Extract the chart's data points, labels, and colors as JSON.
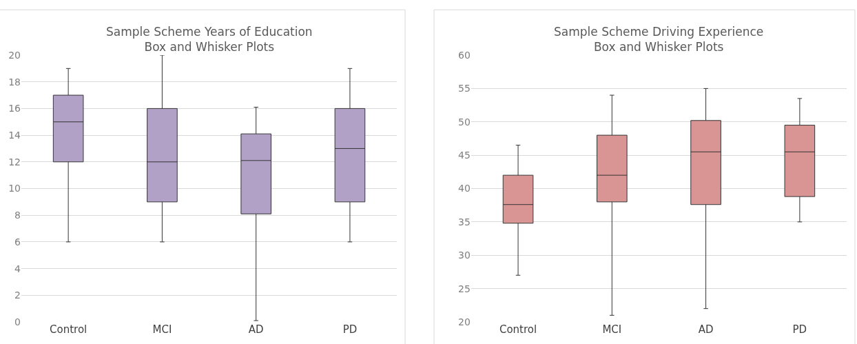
{
  "chart_data": [
    {
      "type": "box",
      "title": "Sample Scheme Years of Education\nBox and Whisker Plots",
      "categories": [
        "Control",
        "MCI",
        "AD",
        "PD"
      ],
      "series": [
        {
          "color": "#b1a1c7",
          "boxes": [
            {
              "low": 6,
              "q1": 12,
              "median": 15,
              "q3": 17,
              "high": 19
            },
            {
              "low": 6,
              "q1": 9,
              "median": 12,
              "q3": 16,
              "high": 20
            },
            {
              "low": 0.1,
              "q1": 8.1,
              "median": 12.1,
              "q3": 14.1,
              "high": 16.1
            },
            {
              "low": 6,
              "q1": 9,
              "median": 13,
              "q3": 16,
              "high": 19
            }
          ]
        }
      ],
      "ylim": [
        0,
        20
      ],
      "yticks": [
        0,
        2,
        4,
        6,
        8,
        10,
        12,
        14,
        16,
        18,
        20
      ],
      "grid": "y"
    },
    {
      "type": "box",
      "title": "Sample Scheme Driving Experience\nBox and Whisker Plots",
      "categories": [
        "Control",
        "MCI",
        "AD",
        "PD"
      ],
      "series": [
        {
          "color": "#d99594",
          "boxes": [
            {
              "low": 27,
              "q1": 34.8,
              "median": 37.6,
              "q3": 42,
              "high": 46.5
            },
            {
              "low": 21,
              "q1": 38,
              "median": 42,
              "q3": 48,
              "high": 54
            },
            {
              "low": 22,
              "q1": 37.6,
              "median": 45.5,
              "q3": 50.2,
              "high": 55
            },
            {
              "low": 35,
              "q1": 38.8,
              "median": 45.5,
              "q3": 49.5,
              "high": 53.5
            }
          ]
        }
      ],
      "ylim": [
        20,
        60
      ],
      "yticks": [
        20,
        25,
        30,
        35,
        40,
        45,
        50,
        55,
        60
      ],
      "grid": "y"
    }
  ]
}
